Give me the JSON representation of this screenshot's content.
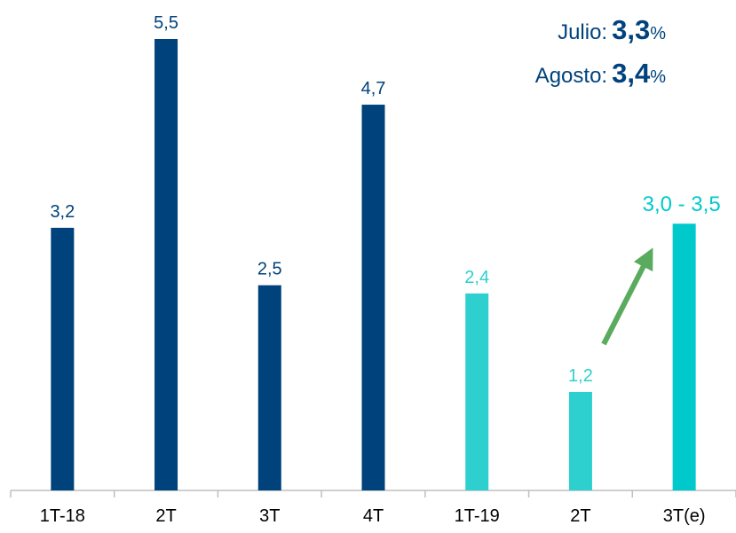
{
  "chart_data": {
    "type": "bar",
    "categories": [
      "1T-18",
      "2T",
      "3T",
      "4T",
      "1T-19",
      "2T",
      "3T(e)"
    ],
    "values": [
      3.2,
      5.5,
      2.5,
      4.7,
      2.4,
      1.2,
      3.25
    ],
    "value_labels": [
      "3,2",
      "5,5",
      "2,5",
      "4,7",
      "2,4",
      "1,2",
      "3,0 - 3,5"
    ],
    "colors": [
      "#00427c",
      "#00427c",
      "#00427c",
      "#00427c",
      "#2ecfcf",
      "#2ecfcf",
      "#00c9cc"
    ],
    "label_colors": [
      "#00427c",
      "#00427c",
      "#00427c",
      "#00427c",
      "#2ecfcf",
      "#2ecfcf",
      "#00c9cc"
    ],
    "ylim": [
      0,
      5.5
    ],
    "annotations": [
      {
        "label": "Julio:",
        "value": "3,3",
        "unit": "%"
      },
      {
        "label": "Agosto:",
        "value": "3,4",
        "unit": "%"
      }
    ]
  }
}
